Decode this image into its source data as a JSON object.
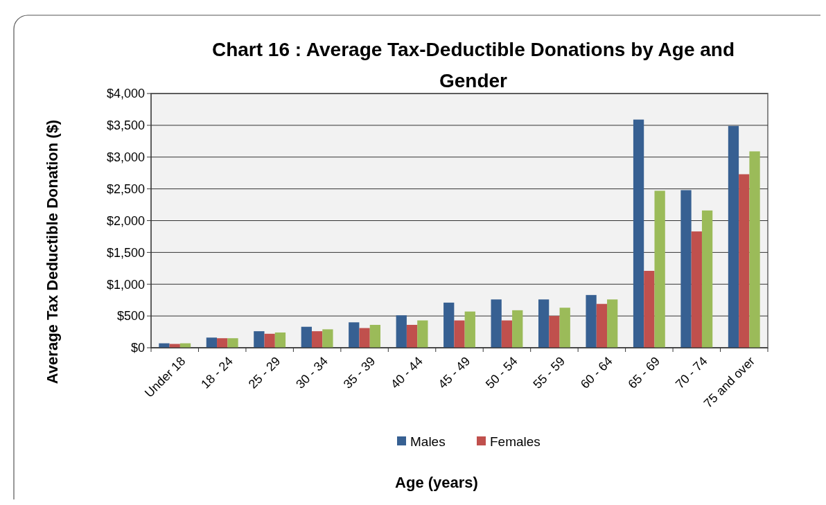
{
  "chart_data": {
    "type": "bar",
    "title": "Chart 16 : Average Tax-Deductible Donations by Age and Gender",
    "xlabel": "Age (years)",
    "ylabel": "Average Tax Deductible Donation ($)",
    "categories": [
      "Under 18",
      "18 - 24",
      "25 - 29",
      "30 - 34",
      "35 - 39",
      "40 - 44",
      "45 - 49",
      "50 - 54",
      "55 - 59",
      "60 - 64",
      "65 - 69",
      "70 - 74",
      "75 and over"
    ],
    "series": [
      {
        "name": "Males",
        "color": "#376092",
        "values": [
          70,
          160,
          260,
          330,
          400,
          510,
          710,
          760,
          760,
          830,
          3590,
          2480,
          3490
        ]
      },
      {
        "name": "Females",
        "color": "#c0504d",
        "values": [
          60,
          150,
          220,
          260,
          310,
          360,
          430,
          430,
          500,
          690,
          1210,
          1830,
          2730
        ]
      },
      {
        "color": "#9bbb59",
        "values": [
          70,
          150,
          240,
          290,
          360,
          430,
          570,
          590,
          630,
          760,
          2470,
          2160,
          3090
        ]
      }
    ],
    "ylim": [
      0,
      4000
    ],
    "yticks": [
      {
        "value": 0,
        "label": "$0"
      },
      {
        "value": 500,
        "label": "$500"
      },
      {
        "value": 1000,
        "label": "$1,000"
      },
      {
        "value": 1500,
        "label": "$1,500"
      },
      {
        "value": 2000,
        "label": "$2,000"
      },
      {
        "value": 2500,
        "label": "$2,500"
      },
      {
        "value": 3000,
        "label": "$3,000"
      },
      {
        "value": 3500,
        "label": "$3,500"
      },
      {
        "value": 4000,
        "label": "$4,000"
      }
    ],
    "grid": "y",
    "legend": "bottom"
  }
}
